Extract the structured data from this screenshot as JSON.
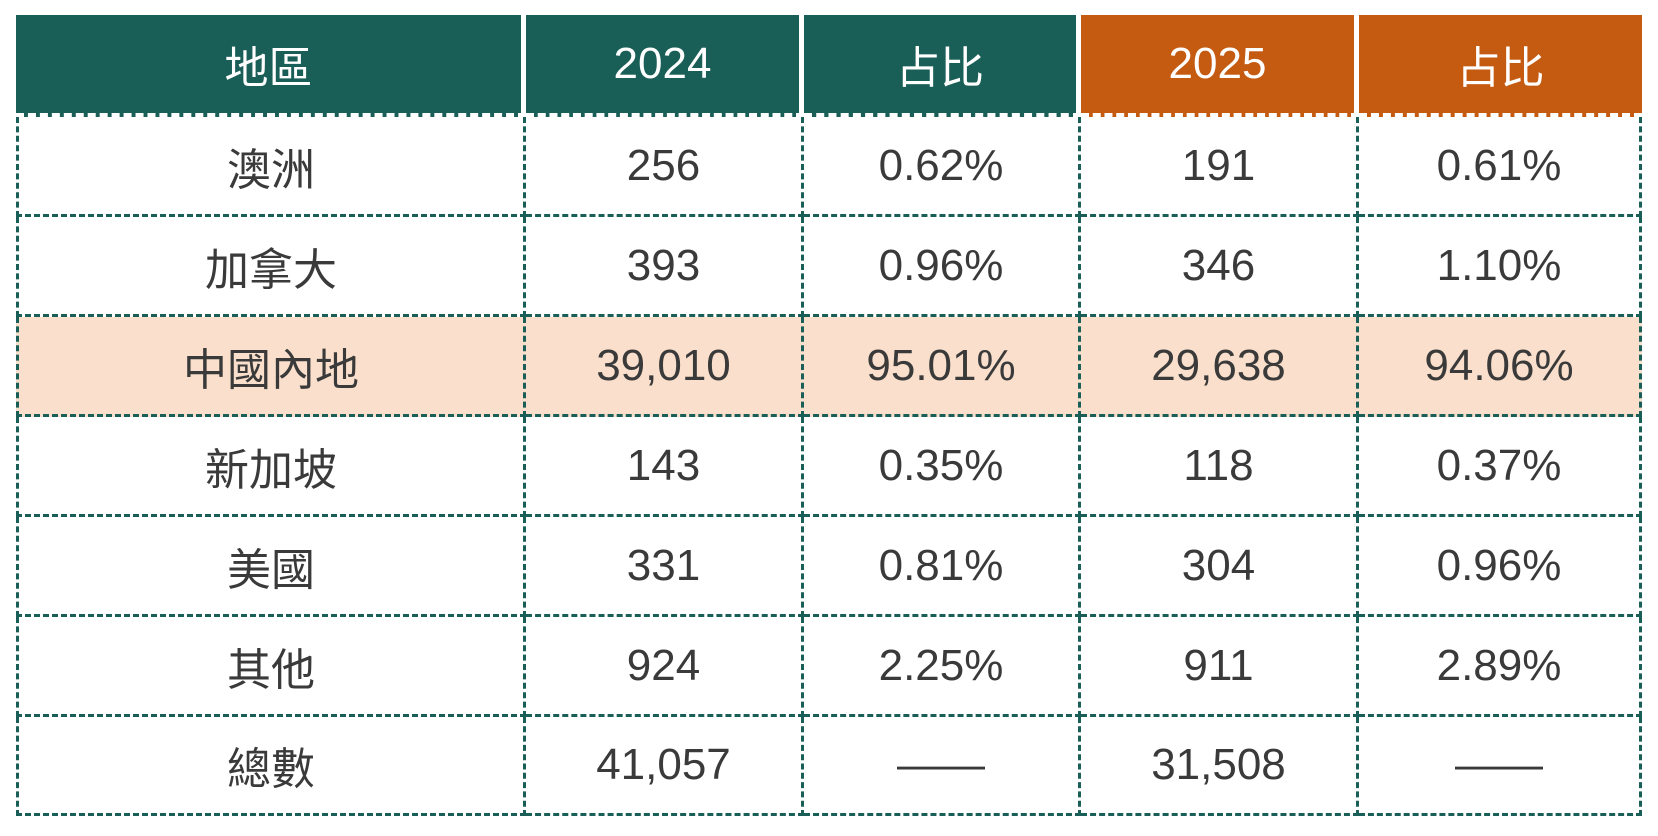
{
  "table": {
    "columns": [
      {
        "label": "地區"
      },
      {
        "label": "2024"
      },
      {
        "label": "占比"
      },
      {
        "label": "2025"
      },
      {
        "label": "占比"
      }
    ],
    "rows": [
      {
        "region": "澳洲",
        "v2024": "256",
        "p2024": "0.62%",
        "v2025": "191",
        "p2025": "0.61%"
      },
      {
        "region": "加拿大",
        "v2024": "393",
        "p2024": "0.96%",
        "v2025": "346",
        "p2025": "1.10%"
      },
      {
        "region": "中國內地",
        "v2024": "39,010",
        "p2024": "95.01%",
        "v2025": "29,638",
        "p2025": "94.06%"
      },
      {
        "region": "新加坡",
        "v2024": "143",
        "p2024": "0.35%",
        "v2025": "118",
        "p2025": "0.37%"
      },
      {
        "region": "美國",
        "v2024": "331",
        "p2024": "0.81%",
        "v2025": "304",
        "p2025": "0.96%"
      },
      {
        "region": "其他",
        "v2024": "924",
        "p2024": "2.25%",
        "v2025": "911",
        "p2025": "2.89%"
      },
      {
        "region": "總數",
        "v2024": "41,057",
        "p2024": "——",
        "v2025": "31,508",
        "p2025": "——"
      }
    ],
    "highlighted_region": "中國內地",
    "colors": {
      "header_teal": "#1A5F57",
      "header_orange": "#C55A11",
      "highlight_row_bg": "#FAE0CC",
      "dashed_border": "#1A5F57",
      "body_text": "#3A3A3A",
      "header_text": "#FFFFFF"
    }
  },
  "chart_data": {
    "type": "table",
    "columns": [
      "地區",
      "2024",
      "占比",
      "2025",
      "占比"
    ],
    "rows": [
      [
        "澳洲",
        256,
        "0.62%",
        191,
        "0.61%"
      ],
      [
        "加拿大",
        393,
        "0.96%",
        346,
        "1.10%"
      ],
      [
        "中國內地",
        39010,
        "95.01%",
        29638,
        "94.06%"
      ],
      [
        "新加坡",
        143,
        "0.35%",
        118,
        "0.37%"
      ],
      [
        "美國",
        331,
        "0.81%",
        304,
        "0.96%"
      ],
      [
        "其他",
        924,
        "2.25%",
        911,
        "2.89%"
      ],
      [
        "總數",
        41057,
        "——",
        31508,
        "——"
      ]
    ],
    "highlighted_row": "中國內地",
    "notes": "Header: first three columns teal (#1A5F57), last two orange (#C55A11); 2024 total 41,057 vs 2025 total 31,508"
  }
}
